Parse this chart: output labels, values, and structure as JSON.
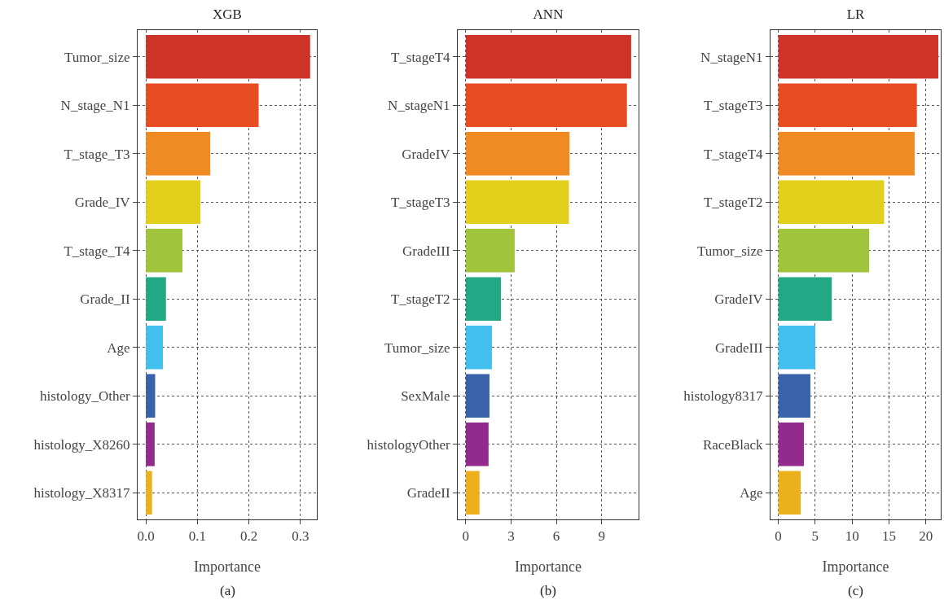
{
  "chart_data": [
    {
      "type": "bar",
      "orientation": "horizontal",
      "title": "XGB",
      "xlabel": "Importance",
      "annotations": [
        "(a)"
      ],
      "grid": true,
      "categories": [
        "Tumor_size",
        "N_stage_N1",
        "T_stage_T3",
        "Grade_IV",
        "T_stage_T4",
        "Grade_II",
        "Age",
        "histology_Other",
        "histology_X8260",
        "histology_X8317"
      ],
      "values": [
        0.319,
        0.219,
        0.125,
        0.106,
        0.071,
        0.039,
        0.033,
        0.018,
        0.017,
        0.012
      ],
      "colors": [
        "#cd3328",
        "#e84c23",
        "#f08a22",
        "#e2cf1c",
        "#a0c43c",
        "#22a884",
        "#42bfee",
        "#3a62ab",
        "#922b8c",
        "#ecb01c"
      ],
      "xlim": [
        -0.016,
        0.332
      ],
      "xticks": [
        {
          "value": 0,
          "label": "0.0"
        },
        0.1,
        0.2,
        0.3
      ]
    },
    {
      "type": "bar",
      "orientation": "horizontal",
      "title": "ANN",
      "xlabel": "Importance",
      "annotations": [
        "(b)"
      ],
      "grid": true,
      "categories": [
        "T_stageT4",
        "N_stageN1",
        "GradeIV",
        "T_stageT3",
        "GradeIII",
        "T_stageT2",
        "Tumor_size",
        "SexMale",
        "histologyOther",
        "GradeII"
      ],
      "values": [
        10.95,
        10.67,
        6.87,
        6.83,
        3.24,
        2.33,
        1.73,
        1.57,
        1.51,
        0.91
      ],
      "colors": [
        "#cd3328",
        "#e84c23",
        "#f08a22",
        "#e2cf1c",
        "#a0c43c",
        "#22a884",
        "#42bfee",
        "#3a62ab",
        "#922b8c",
        "#ecb01c"
      ],
      "xlim": [
        -0.53,
        11.44
      ],
      "xticks": [
        0,
        3,
        6,
        9
      ]
    },
    {
      "type": "bar",
      "orientation": "horizontal",
      "title": "LR",
      "xlabel": "Importance",
      "annotations": [
        "(c)"
      ],
      "grid": true,
      "categories": [
        "N_stageN1",
        "T_stageT3",
        "T_stageT4",
        "T_stageT2",
        "Tumor_size",
        "GradeIV",
        "GradeIII",
        "histology8317",
        "RaceBlack",
        "Age"
      ],
      "values": [
        21.67,
        18.77,
        18.46,
        14.33,
        12.31,
        7.25,
        5.01,
        4.35,
        3.47,
        3.03
      ],
      "colors": [
        "#cd3328",
        "#e84c23",
        "#f08a22",
        "#e2cf1c",
        "#a0c43c",
        "#22a884",
        "#42bfee",
        "#3a62ab",
        "#922b8c",
        "#ecb01c"
      ],
      "xlim": [
        -1.05,
        22
      ],
      "xticks": [
        0,
        5,
        10,
        15,
        20
      ]
    }
  ]
}
